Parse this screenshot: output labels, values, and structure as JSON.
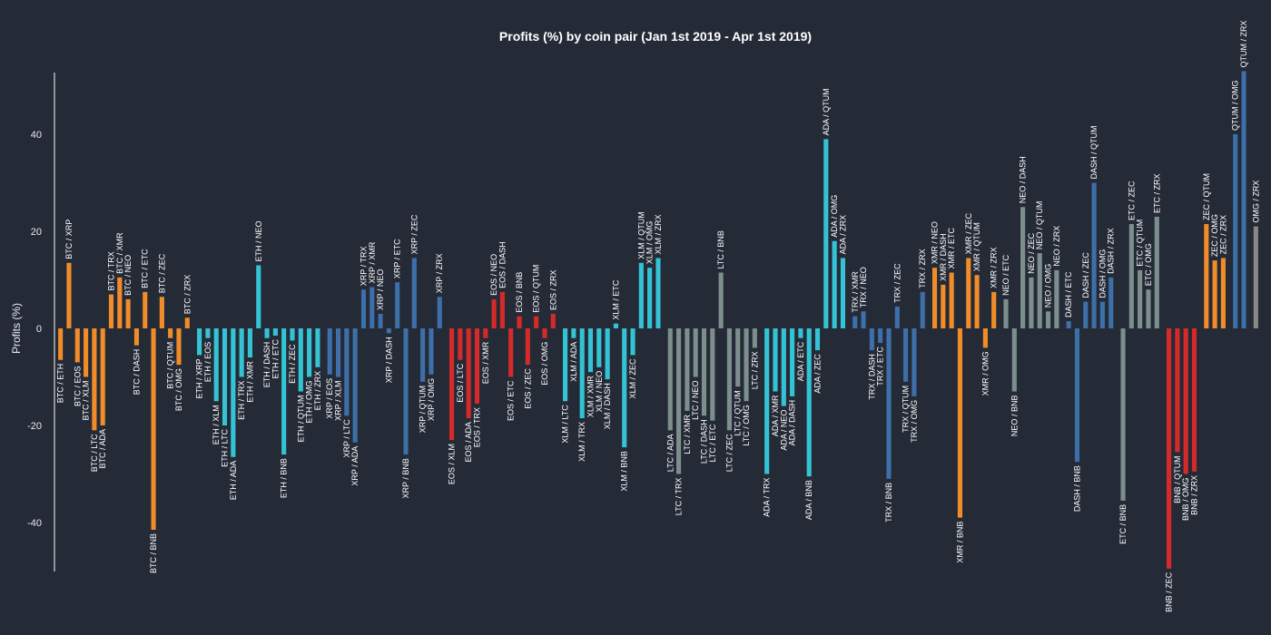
{
  "colors": {
    "background": "#252a37",
    "BTC": "#f08c2a",
    "ETH": "#34c3d4",
    "XRP": "#3d6fa8",
    "EOS": "#d42a2a",
    "XLM": "#34c3d4",
    "LTC": "#7d8f8c",
    "ADA": "#34c3d4",
    "TRX": "#3d6fa8",
    "XMR": "#f08c2a",
    "NEO": "#7d8f8c",
    "DASH": "#3d6fa8",
    "ETC": "#7d8f8c",
    "BNB": "#d42a2a",
    "ZEC": "#f08c2a",
    "QTUM": "#3d6fa8"
  },
  "chart_data": {
    "type": "bar",
    "title": "Profits (%) by coin pair (Jan 1st 2019 - Apr 1st 2019)",
    "xlabel": "",
    "ylabel": "Profits (%)",
    "ylim": [
      -50,
      53
    ],
    "yticks": [
      -40,
      -20,
      0,
      20,
      40
    ],
    "grid": false,
    "groups": [
      {
        "base": "BTC",
        "bars": [
          [
            "BTC / ETH",
            -6.5
          ],
          [
            "BTC / XRP",
            13.5
          ],
          [
            "BTC / EOS",
            -7
          ],
          [
            "BTC / XLM",
            -10
          ],
          [
            "BTC / LTC",
            -21
          ],
          [
            "BTC / ADA",
            -20
          ],
          [
            "BTC / TRX",
            7
          ],
          [
            "BTC / XMR",
            10.5
          ],
          [
            "BTC / NEO",
            6
          ],
          [
            "BTC / DASH",
            -3.5
          ],
          [
            "BTC / ETC",
            7.5
          ],
          [
            "BTC / BNB",
            -41.5
          ],
          [
            "BTC / ZEC",
            6.5
          ],
          [
            "BTC / QTUM",
            -2
          ],
          [
            "BTC / OMG",
            -7.5
          ],
          [
            "BTC / ZRX",
            2.2
          ]
        ]
      },
      {
        "base": "ETH",
        "bars": [
          [
            "ETH / XRP",
            -5.5
          ],
          [
            "ETH / EOS",
            -2
          ],
          [
            "ETH / XLM",
            -15
          ],
          [
            "ETH / LTC",
            -20
          ],
          [
            "ETH / ADA",
            -26.5
          ],
          [
            "ETH / TRX",
            -10
          ],
          [
            "ETH / XMR",
            -6
          ],
          [
            "ETH / NEO",
            13
          ],
          [
            "ETH / DASH",
            -2
          ],
          [
            "ETH / ETC",
            -1.5
          ],
          [
            "ETH / BNB",
            -26
          ],
          [
            "ETH / ZEC",
            -2.5
          ],
          [
            "ETH / QTUM",
            -13
          ],
          [
            "ETH / OMG",
            -10
          ],
          [
            "ETH / ZRX",
            -8
          ]
        ]
      },
      {
        "base": "XRP",
        "bars": [
          [
            "XRP / EOS",
            -9.5
          ],
          [
            "XRP / XLM",
            -10
          ],
          [
            "XRP / LTC",
            -18
          ],
          [
            "XRP / ADA",
            -23.5
          ],
          [
            "XRP / TRX",
            8
          ],
          [
            "XRP / XMR",
            8.5
          ],
          [
            "XRP / NEO",
            3
          ],
          [
            "XRP / DASH",
            -1
          ],
          [
            "XRP / ETC",
            9.5
          ],
          [
            "XRP / BNB",
            -26
          ],
          [
            "XRP / ZEC",
            14.5
          ],
          [
            "XRP / QTUM",
            -11
          ],
          [
            "XRP / OMG",
            -9.5
          ],
          [
            "XRP / ZRX",
            6.5
          ]
        ]
      },
      {
        "base": "EOS",
        "bars": [
          [
            "EOS / XLM",
            -23
          ],
          [
            "EOS / LTC",
            -6.5
          ],
          [
            "EOS / ADA",
            -18.5
          ],
          [
            "EOS / TRX",
            -15.5
          ],
          [
            "EOS / XMR",
            -2
          ],
          [
            "EOS / NEO",
            6
          ],
          [
            "EOS / DASH",
            7.5
          ],
          [
            "EOS / ETC",
            -10
          ],
          [
            "EOS / BNB",
            2.5
          ],
          [
            "EOS / ZEC",
            -7.5
          ],
          [
            "EOS / QTUM",
            2.5
          ],
          [
            "EOS / OMG",
            -2
          ],
          [
            "EOS / ZRX",
            3
          ]
        ]
      },
      {
        "base": "XLM",
        "bars": [
          [
            "XLM / LTC",
            -15
          ],
          [
            "XLM / ADA",
            -2
          ],
          [
            "XLM / TRX",
            -18.5
          ],
          [
            "XLM / XMR",
            -9
          ],
          [
            "XLM / NEO",
            -8
          ],
          [
            "XLM / DASH",
            -10.5
          ],
          [
            "XLM / ETC",
            1
          ],
          [
            "XLM / BNB",
            -24.5
          ],
          [
            "XLM / ZEC",
            -5.5
          ],
          [
            "XLM / QTUM",
            13.5
          ],
          [
            "XLM / OMG",
            12.5
          ],
          [
            "XLM / ZRX",
            14.5
          ]
        ]
      },
      {
        "base": "LTC",
        "bars": [
          [
            "LTC / ADA",
            -21
          ],
          [
            "LTC / TRX",
            -30
          ],
          [
            "LTC / XMR",
            -17
          ],
          [
            "LTC / NEO",
            -10
          ],
          [
            "LTC / DASH",
            -18
          ],
          [
            "LTC / ETC",
            -19
          ],
          [
            "LTC / BNB",
            11.5
          ],
          [
            "LTC / ZEC",
            -21
          ],
          [
            "LTC / QTUM",
            -12
          ],
          [
            "LTC / OMG",
            -15
          ],
          [
            "LTC / ZRX",
            -4
          ]
        ]
      },
      {
        "base": "ADA",
        "bars": [
          [
            "ADA / TRX",
            -30
          ],
          [
            "ADA / XMR",
            -13
          ],
          [
            "ADA / NEO",
            -16
          ],
          [
            "ADA / DASH",
            -14
          ],
          [
            "ADA / ETC",
            -2
          ],
          [
            "ADA / BNB",
            -30.5
          ],
          [
            "ADA / ZEC",
            -4.5
          ],
          [
            "ADA / QTUM",
            39
          ],
          [
            "ADA / OMG",
            18
          ],
          [
            "ADA / ZRX",
            14.5
          ]
        ]
      },
      {
        "base": "TRX",
        "bars": [
          [
            "TRX / XMR",
            2.5
          ],
          [
            "TRX / NEO",
            3.5
          ],
          [
            "TRX / DASH",
            -4.5
          ],
          [
            "TRX / ETC",
            -3
          ],
          [
            "TRX / BNB",
            -31
          ],
          [
            "TRX / ZEC",
            4.5
          ],
          [
            "TRX / QTUM",
            -11
          ],
          [
            "TRX / OMG",
            -14
          ],
          [
            "TRX / ZRX",
            7.5
          ]
        ]
      },
      {
        "base": "XMR",
        "bars": [
          [
            "XMR / NEO",
            12.5
          ],
          [
            "XMR / DASH",
            9
          ],
          [
            "XMR / ETC",
            11.5
          ],
          [
            "XMR / BNB",
            -39
          ],
          [
            "XMR / ZEC",
            14.5
          ],
          [
            "XMR / QTUM",
            11
          ],
          [
            "XMR / OMG",
            -4
          ],
          [
            "XMR / ZRX",
            7.5
          ]
        ]
      },
      {
        "base": "NEO",
        "bars": [
          [
            "NEO / ETC",
            6
          ],
          [
            "NEO / BNB",
            -13
          ],
          [
            "NEO / DASH",
            25
          ],
          [
            "NEO / ZEC",
            10.5
          ],
          [
            "NEO / QTUM",
            15.5
          ],
          [
            "NEO / OMG",
            3.5
          ],
          [
            "NEO / ZRX",
            12
          ]
        ]
      },
      {
        "base": "DASH",
        "bars": [
          [
            "DASH / ETC",
            1.5
          ],
          [
            "DASH / BNB",
            -27.5
          ],
          [
            "DASH / ZEC",
            5.5
          ],
          [
            "DASH / QTUM",
            30
          ],
          [
            "DASH / OMG",
            5.5
          ],
          [
            "DASH / ZRX",
            10.5
          ]
        ]
      },
      {
        "base": "ETC",
        "bars": [
          [
            "ETC / BNB",
            -35.5
          ],
          [
            "ETC / ZEC",
            21.5
          ],
          [
            "ETC / QTUM",
            12
          ],
          [
            "ETC / OMG",
            8
          ],
          [
            "ETC / ZRX",
            23
          ]
        ]
      },
      {
        "base": "BNB",
        "bars": [
          [
            "BNB / ZEC",
            -49.5
          ],
          [
            "BNB / QTUM",
            -25.5
          ],
          [
            "BNB / OMG",
            -30
          ],
          [
            "BNB / ZRX",
            -29.5
          ]
        ]
      },
      {
        "base": "ZEC",
        "bars": [
          [
            "ZEC / QTUM",
            21.5
          ],
          [
            "ZEC / OMG",
            14
          ],
          [
            "ZEC / ZRX",
            14.5
          ]
        ]
      },
      {
        "base": "QTUM",
        "bars": [
          [
            "QTUM / OMG",
            40
          ],
          [
            "QTUM / ZRX",
            53
          ]
        ]
      },
      {
        "base": "OMG",
        "bars": [
          [
            "OMG / ZRX",
            21
          ]
        ]
      }
    ]
  }
}
